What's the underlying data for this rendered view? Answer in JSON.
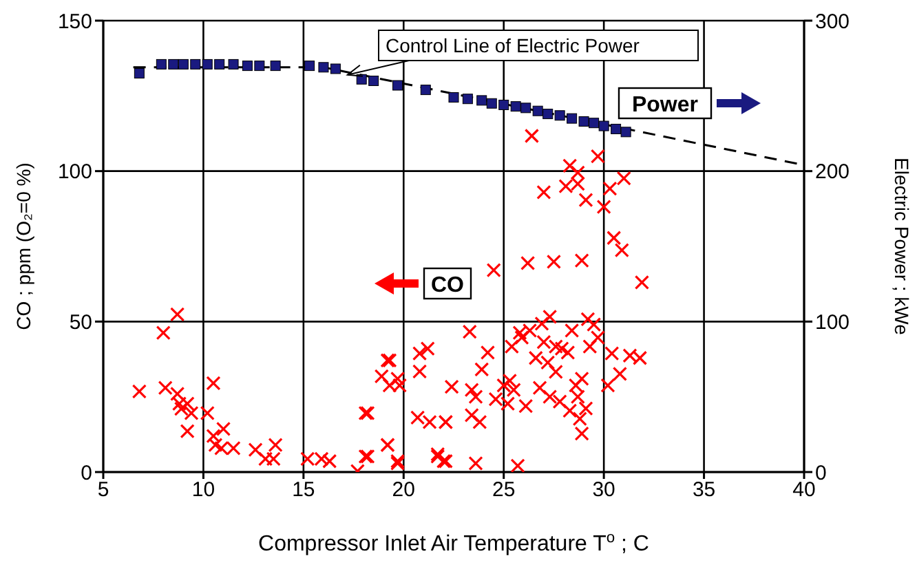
{
  "chart_data": {
    "type": "scatter",
    "xlabel": "Compressor Inlet Air Temperature T$^{o}$ ; C",
    "ylabel": "CO ; ppm (O₂=0 %)",
    "y2label": "Electric Power ; kWe",
    "xlim": [
      5,
      40
    ],
    "xticks": [
      5,
      10,
      15,
      20,
      25,
      30,
      35,
      40
    ],
    "ylim": [
      0,
      150
    ],
    "yticks": [
      0,
      50,
      100,
      150
    ],
    "y2lim": [
      0,
      300
    ],
    "y2ticks": [
      0,
      100,
      200,
      300
    ],
    "grid": true,
    "annotations": [
      {
        "text": "Control Line of Electric Power",
        "x": 17.2,
        "y": 132
      }
    ],
    "series": [
      {
        "name": "CO",
        "marker": "cross",
        "color": "#ff0000",
        "x": [
          6.8,
          8.0,
          8.7,
          8.1,
          8.7,
          8.8,
          9.2,
          9.4,
          9.2,
          10.2,
          8.9,
          10.5,
          10.5,
          10.6,
          11.0,
          10.9,
          11.5,
          12.6,
          13.1,
          13.6,
          13.5,
          15.2,
          15.9,
          16.3,
          17.7,
          18.2,
          18.2,
          19.2,
          19.7,
          19.2,
          18.9,
          19.3,
          19.7,
          19.8,
          20.8,
          21.2,
          20.8,
          20.7,
          21.3,
          22.1,
          21.7,
          22.1,
          26.4,
          29.7,
          28.3,
          28.7,
          28.1,
          28.7,
          27.0,
          29.1,
          30.0,
          30.3,
          31.0,
          30.5,
          30.9,
          31.9,
          24.5,
          26.2,
          27.5,
          28.9,
          23.3,
          19.3,
          22.4,
          24.2,
          23.9,
          23.4,
          23.6,
          24.6,
          25.4,
          25.8,
          26.3,
          27.3,
          26.9,
          28.4,
          29.2,
          29.5,
          29.7,
          26.6,
          27.2,
          27.6,
          27.9,
          28.2,
          29.3,
          30.4,
          31.3,
          31.8,
          30.8,
          30.2,
          28.9,
          28.6,
          28.7,
          26.8,
          27.3,
          27.8,
          25.3,
          25.5,
          25.2,
          26.1,
          28.3,
          29.1,
          28.9,
          28.8,
          23.4,
          23.8,
          22.1,
          18.1,
          19.2,
          18.1,
          19.7,
          21.7,
          22.0,
          23.6,
          25.7,
          25.0,
          27.0,
          27.6,
          25.9
        ],
        "values": [
          26.8,
          46.3,
          52.4,
          28,
          26,
          22.7,
          22.7,
          19.6,
          13.6,
          19.6,
          21,
          29.5,
          12,
          9,
          14.3,
          7.9,
          7.9,
          7.4,
          4.4,
          9,
          4.4,
          4.4,
          4.4,
          3.6,
          0.3,
          5.2,
          19.6,
          9,
          3.6,
          37.1,
          31.8,
          28.8,
          31,
          28.8,
          39.4,
          41,
          33.4,
          18.1,
          16.6,
          16.6,
          5.2,
          3.6,
          111.7,
          104.9,
          101.8,
          99.5,
          95,
          95.8,
          93,
          90.4,
          88.1,
          94.2,
          97.6,
          77.8,
          73.7,
          63,
          67.1,
          69.4,
          69.9,
          70.3,
          46.6,
          37.1,
          28.3,
          39.7,
          34.1,
          27.3,
          25,
          24.2,
          41.7,
          46.3,
          47,
          51.6,
          49.3,
          47,
          50.8,
          49,
          44.7,
          37.9,
          36.4,
          33.3,
          41,
          39.7,
          41.7,
          39.4,
          38.7,
          37.9,
          32.6,
          28.8,
          31,
          28.8,
          25,
          28,
          25,
          23.4,
          30.3,
          27.3,
          22.7,
          21.9,
          20.4,
          21.1,
          12.8,
          17.7,
          18.9,
          16.6,
          16.6,
          19.6,
          9,
          5.2,
          2.9,
          5.9,
          3.6,
          2.9,
          2.1,
          28.8,
          43.2,
          41.7,
          44.7
        ]
      },
      {
        "name": "Power",
        "marker": "square",
        "color": "#1a1a80",
        "axis": "y2",
        "x": [
          6.8,
          7.9,
          8.5,
          9.0,
          9.6,
          10.2,
          10.8,
          11.5,
          12.2,
          12.8,
          13.6,
          15.3,
          16.0,
          16.6,
          17.9,
          18.5,
          19.7,
          21.1,
          22.5,
          23.2,
          23.9,
          24.4,
          25.0,
          25.6,
          26.1,
          26.7,
          27.2,
          27.8,
          28.4,
          29.0,
          29.5,
          30.0,
          30.6,
          31.1
        ],
        "values": [
          265,
          271,
          271,
          271,
          271,
          271,
          271,
          271,
          270,
          270,
          270,
          270,
          269,
          268,
          261,
          260,
          257,
          254,
          249,
          248,
          247,
          245,
          244,
          243,
          242,
          240,
          238,
          237,
          235,
          233,
          232,
          230,
          228,
          226
        ]
      },
      {
        "type": "line",
        "line_style": "dashed",
        "marker": "none",
        "color": "#000000",
        "axis": "y2",
        "x": [
          6.5,
          16,
          40
        ],
        "values": [
          269,
          269,
          204
        ]
      }
    ]
  }
}
